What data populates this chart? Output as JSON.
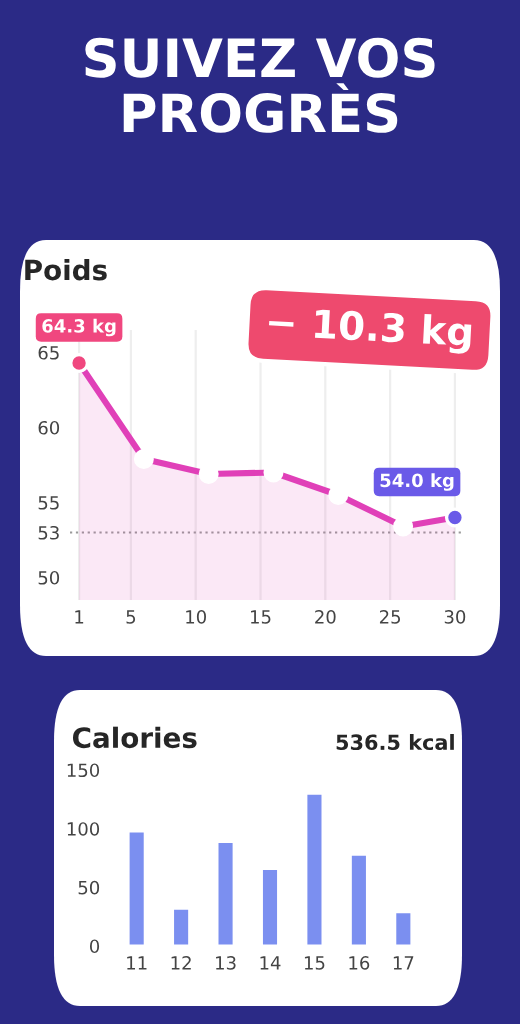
{
  "chart_data": [
    {
      "type": "area",
      "title": "Poids",
      "annotations": [
        "SUIVEZ VOS PROGRÈS",
        "− 10.3 kg"
      ],
      "series": [
        {
          "color": "#e040b8",
          "x": [
            1,
            6,
            11,
            16,
            21,
            26,
            30
          ],
          "values": [
            64.3,
            57.9,
            56.9,
            57.0,
            55.5,
            53.4,
            54.0
          ],
          "colors": [
            "#f0477f",
            "#ffffff",
            "#ffffff",
            "#ffffff",
            "#ffffff",
            "#ffffff",
            "#6a5ae8"
          ],
          "value_labels": [
            "64.3 kg",
            null,
            null,
            null,
            null,
            null,
            "54.0 kg"
          ]
        }
      ],
      "xlim": [
        0.3,
        30.7
      ],
      "xticks": [
        1,
        5,
        10,
        15,
        20,
        25,
        30
      ],
      "ylim": [
        48.5,
        66.5
      ],
      "yticks": [
        50,
        53,
        55,
        60,
        65
      ],
      "ref_lines": [
        {
          "axis": "y",
          "value": 53,
          "color": "#9a9a9a",
          "line_style": "dotted"
        }
      ],
      "grid": "x",
      "marker": "circle",
      "legend": false
    },
    {
      "type": "bar",
      "title": "Calories",
      "annotations": [
        "536.5 kcal"
      ],
      "categories": [
        "11",
        "12",
        "13",
        "14",
        "15",
        "16",
        "17"
      ],
      "values": [
        98,
        32,
        89,
        66,
        130,
        78,
        29
      ],
      "color": "#7b8ff0",
      "ylim": [
        0,
        150
      ],
      "yticks": [
        0,
        50,
        100,
        150
      ],
      "grid": false,
      "legend": false
    }
  ]
}
